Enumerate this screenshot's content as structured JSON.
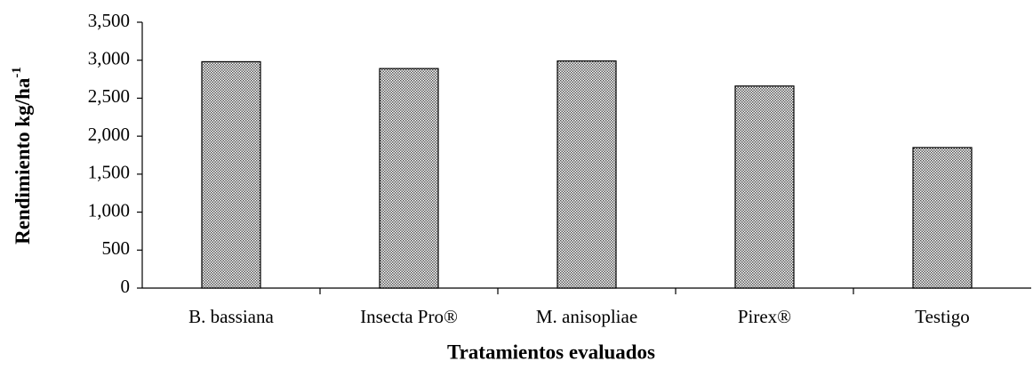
{
  "chart_data": {
    "type": "bar",
    "y_label": {
      "text": "Rendimiento kg/ha",
      "superscript": "-1"
    },
    "x_label": "Tratamientos evaluados",
    "categories": [
      "B. bassiana",
      "Insecta Pro®",
      "M. anisopliae",
      "Pirex®",
      "Testigo"
    ],
    "values": [
      2980,
      2890,
      2990,
      2660,
      1850
    ],
    "color": "#9a9a9a",
    "ylim": [
      0,
      3500
    ],
    "yticks": [
      0,
      {
        "value": 500,
        "label": "500"
      },
      {
        "value": 1000,
        "label": "1,000"
      },
      {
        "value": 1500,
        "label": "1,500"
      },
      {
        "value": 2000,
        "label": "2,000"
      },
      {
        "value": 2500,
        "label": "2,500"
      },
      {
        "value": 3000,
        "label": "3,000"
      },
      {
        "value": 3500,
        "label": "3,500"
      }
    ],
    "grid": false
  }
}
